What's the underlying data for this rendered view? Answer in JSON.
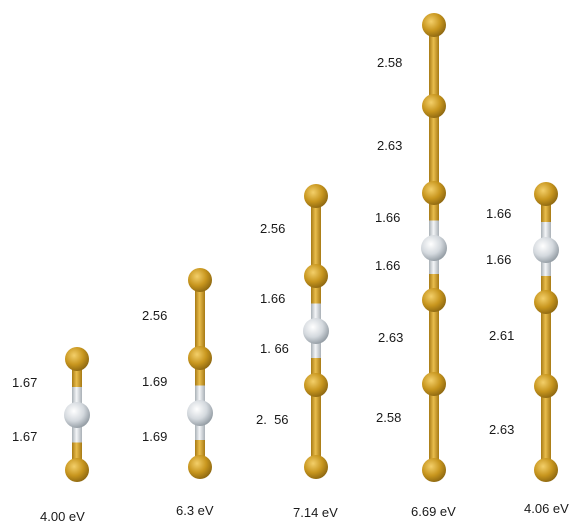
{
  "colors": {
    "gold_atom": "#c8961e",
    "gold_bond": "#cf9d2a",
    "silver_atom": "#d4d9de",
    "silver_bond": "#e8ebee"
  },
  "structures": [
    {
      "energy": "4.00 eV",
      "atoms": [
        "Au",
        "B",
        "Au"
      ],
      "bond_labels": [
        "1.67",
        "1.67"
      ]
    },
    {
      "energy": "6.3 eV",
      "atoms": [
        "Au",
        "Au",
        "B",
        "Au"
      ],
      "bond_labels": [
        "2.56",
        "1.69",
        "1.69"
      ]
    },
    {
      "energy": "7.14 eV",
      "atoms": [
        "Au",
        "Au",
        "B",
        "Au",
        "Au"
      ],
      "bond_labels": [
        "2.56",
        "1.66",
        "1. 66",
        "2.  56"
      ]
    },
    {
      "energy": "6.69 eV",
      "atoms": [
        "Au",
        "Au",
        "Au",
        "B",
        "Au",
        "Au",
        "Au"
      ],
      "bond_labels": [
        "2.58",
        "2.63",
        "1.66",
        "1.66",
        "2.63",
        "2.58"
      ]
    },
    {
      "energy": "4.06 eV",
      "atoms": [
        "Au",
        "B",
        "Au",
        "Au",
        "Au"
      ],
      "bond_labels": [
        "1.66",
        "1.66",
        "2.61",
        "2.63"
      ]
    }
  ]
}
